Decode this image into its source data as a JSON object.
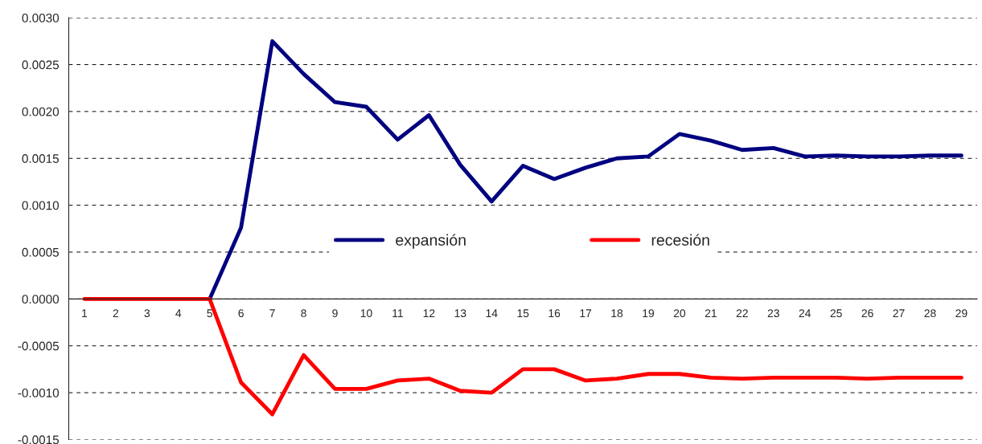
{
  "chart_data": {
    "type": "line",
    "categories": [
      "1",
      "2",
      "3",
      "4",
      "5",
      "6",
      "7",
      "8",
      "9",
      "10",
      "11",
      "12",
      "13",
      "14",
      "15",
      "16",
      "17",
      "18",
      "19",
      "20",
      "21",
      "22",
      "23",
      "24",
      "25",
      "26",
      "27",
      "28",
      "29"
    ],
    "series": [
      {
        "name": "expansión",
        "color": "#000080",
        "values": [
          null,
          null,
          null,
          null,
          0,
          0.00076,
          0.00275,
          0.0024,
          0.0021,
          0.00205,
          0.0017,
          0.00196,
          0.00143,
          0.00104,
          0.00142,
          0.00128,
          0.0014,
          0.0015,
          0.00152,
          0.00176,
          0.00169,
          0.00159,
          0.00161,
          0.00152,
          0.00153,
          0.00152,
          0.00152,
          0.00153,
          0.00153
        ]
      },
      {
        "name": "recesión",
        "color": "#ff0000",
        "values": [
          0,
          0,
          0,
          0,
          0,
          -0.00089,
          -0.00123,
          -0.0006,
          -0.00096,
          -0.00096,
          -0.00087,
          -0.00085,
          -0.00098,
          -0.001,
          -0.00075,
          -0.00075,
          -0.00087,
          -0.00085,
          -0.0008,
          -0.0008,
          -0.00084,
          -0.00085,
          -0.00084,
          -0.00084,
          -0.00084,
          -0.00085,
          -0.00084,
          -0.00084,
          -0.00084
        ]
      }
    ],
    "ylim": [
      -0.0015,
      0.003
    ],
    "yticks": [
      {
        "value": -0.0015,
        "label": "-0.0015"
      },
      {
        "value": -0.001,
        "label": "-0.0010"
      },
      {
        "value": -0.0005,
        "label": "-0.0005"
      },
      {
        "value": 0,
        "label": "0.0000"
      },
      {
        "value": 0.0005,
        "label": "0.0005"
      },
      {
        "value": 0.001,
        "label": "0.0010"
      },
      {
        "value": 0.0015,
        "label": "0.0015"
      },
      {
        "value": 0.002,
        "label": "0.0020"
      },
      {
        "value": 0.0025,
        "label": "0.0025"
      },
      {
        "value": 0.003,
        "label": "0.0030"
      }
    ],
    "grid": "y",
    "legend": "center",
    "marker": "none",
    "line_style": "solid"
  }
}
